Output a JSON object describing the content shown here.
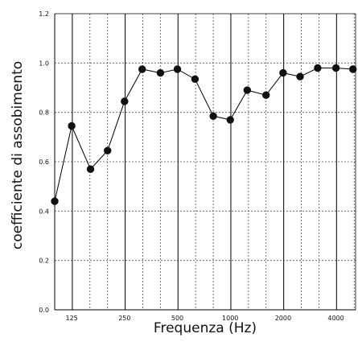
{
  "chart_data": {
    "type": "line",
    "title": "",
    "xlabel": "Frequenza (Hz)",
    "ylabel": "coefficiente di assobimento",
    "x_scale": "log",
    "ylim": [
      0,
      1.2
    ],
    "y_ticks": [
      "0.0",
      "0.2",
      "0.4",
      "0.6",
      "0.8",
      "1.0",
      "1.2"
    ],
    "x_tick_labels": [
      "125",
      "250",
      "500",
      "1000",
      "2000",
      "4000"
    ],
    "x": [
      100,
      125,
      160,
      200,
      250,
      315,
      400,
      500,
      630,
      800,
      1000,
      1250,
      1600,
      2000,
      2500,
      3150,
      4000,
      5000
    ],
    "values": [
      0.44,
      0.745,
      0.57,
      0.645,
      0.845,
      0.975,
      0.96,
      0.975,
      0.935,
      0.785,
      0.77,
      0.89,
      0.87,
      0.96,
      0.945,
      0.98,
      0.98,
      0.975
    ],
    "grid": true,
    "colors": {
      "line": "#000000",
      "marker": "#111111",
      "grid": "#555555",
      "major_grid": "#000000"
    }
  }
}
